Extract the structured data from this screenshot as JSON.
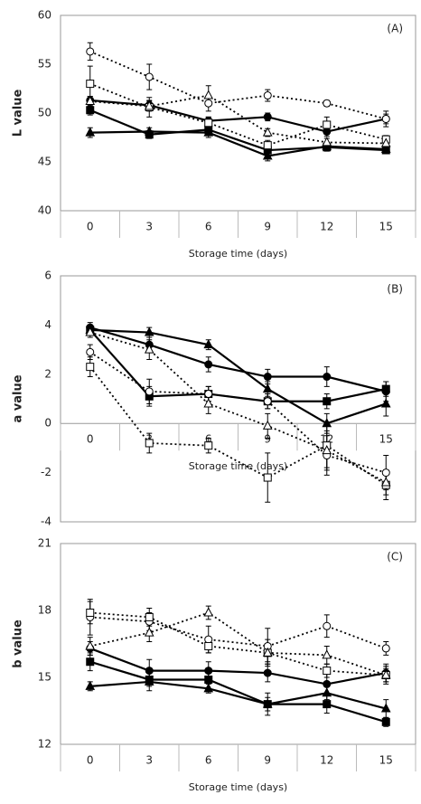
{
  "chart_data": [
    {
      "type": "line",
      "title": "(A)",
      "ylabel": "L value",
      "xlabel": "Storage time (days)",
      "categories": [
        "0",
        "3",
        "6",
        "9",
        "12",
        "15"
      ],
      "ylim": [
        40,
        60
      ],
      "yticks": [
        40,
        45,
        50,
        55,
        60
      ],
      "grid": false,
      "series": [
        {
          "color": "#000000",
          "marker": "circle",
          "filled": true,
          "dashed": false,
          "values": [
            51.3,
            50.8,
            49.2,
            49.6,
            48.1,
            49.4
          ],
          "errors": [
            0.4,
            0.5,
            0.4,
            0.4,
            0.5,
            0.5
          ]
        },
        {
          "color": "#000000",
          "marker": "square",
          "filled": true,
          "dashed": false,
          "values": [
            50.3,
            47.8,
            48.3,
            46.2,
            46.5,
            46.2
          ],
          "errors": [
            0.5,
            0.4,
            0.5,
            0.5,
            0.4,
            0.3
          ]
        },
        {
          "color": "#000000",
          "marker": "triangle",
          "filled": true,
          "dashed": false,
          "values": [
            48.0,
            48.1,
            48.0,
            45.6,
            46.6,
            46.3
          ],
          "errors": [
            0.5,
            0.4,
            0.5,
            0.5,
            0.4,
            0.3
          ]
        },
        {
          "color": "#000000",
          "marker": "circle",
          "filled": false,
          "dashed": true,
          "values": [
            56.3,
            53.7,
            51.0,
            51.8,
            51.0,
            49.4
          ],
          "errors": [
            0.9,
            1.3,
            0.8,
            0.6,
            0.3,
            0.8
          ]
        },
        {
          "color": "#000000",
          "marker": "square",
          "filled": false,
          "dashed": true,
          "values": [
            53.0,
            50.6,
            49.0,
            46.7,
            48.8,
            47.3
          ],
          "errors": [
            1.8,
            1.0,
            0.6,
            0.5,
            0.8,
            0.4
          ]
        },
        {
          "color": "#000000",
          "marker": "triangle",
          "filled": false,
          "dashed": true,
          "values": [
            51.2,
            50.7,
            51.8,
            48.0,
            47.0,
            46.9
          ],
          "errors": [
            0.5,
            0.5,
            1.0,
            0.4,
            0.4,
            0.4
          ]
        }
      ]
    },
    {
      "type": "line",
      "title": "(B)",
      "ylabel": "a value",
      "xlabel": "Storage time (days)",
      "categories": [
        "0",
        "3",
        "6",
        "9",
        "12",
        "15"
      ],
      "ylim": [
        -4,
        6
      ],
      "yticks": [
        -4,
        -2,
        0,
        2,
        4,
        6
      ],
      "grid": false,
      "series": [
        {
          "color": "#000000",
          "marker": "circle",
          "filled": true,
          "dashed": false,
          "values": [
            3.9,
            3.2,
            2.4,
            1.9,
            1.9,
            1.3
          ],
          "errors": [
            0.2,
            0.3,
            0.3,
            0.3,
            0.4,
            0.4
          ]
        },
        {
          "color": "#000000",
          "marker": "square",
          "filled": true,
          "dashed": false,
          "values": [
            3.8,
            1.1,
            1.2,
            0.9,
            0.9,
            1.4
          ],
          "errors": [
            0.2,
            0.4,
            0.3,
            0.3,
            0.3,
            0.3
          ]
        },
        {
          "color": "#000000",
          "marker": "triangle",
          "filled": true,
          "dashed": false,
          "values": [
            3.8,
            3.7,
            3.2,
            1.4,
            0.0,
            0.8
          ],
          "errors": [
            0.2,
            0.2,
            0.2,
            0.3,
            0.4,
            0.5
          ]
        },
        {
          "color": "#000000",
          "marker": "circle",
          "filled": false,
          "dashed": true,
          "values": [
            2.9,
            1.3,
            1.2,
            0.9,
            -1.3,
            -2.0
          ],
          "errors": [
            0.3,
            0.5,
            0.3,
            0.3,
            0.8,
            0.7
          ]
        },
        {
          "color": "#000000",
          "marker": "square",
          "filled": false,
          "dashed": true,
          "values": [
            2.3,
            -0.8,
            -0.9,
            -2.2,
            -0.9,
            -2.5
          ],
          "errors": [
            0.4,
            0.4,
            0.3,
            1.0,
            0.9,
            0.6
          ]
        },
        {
          "color": "#000000",
          "marker": "triangle",
          "filled": false,
          "dashed": true,
          "values": [
            3.7,
            3.0,
            0.8,
            -0.1,
            -1.1,
            -2.4
          ],
          "errors": [
            0.2,
            0.4,
            0.4,
            0.5,
            0.8,
            0.5
          ]
        }
      ]
    },
    {
      "type": "line",
      "title": "(C)",
      "ylabel": "b value",
      "xlabel": "Storage time (days)",
      "categories": [
        "0",
        "3",
        "6",
        "9",
        "12",
        "15"
      ],
      "ylim": [
        12,
        21
      ],
      "yticks": [
        12,
        15,
        18,
        21
      ],
      "grid": false,
      "series": [
        {
          "color": "#000000",
          "marker": "circle",
          "filled": true,
          "dashed": false,
          "values": [
            16.3,
            15.3,
            15.3,
            15.2,
            14.7,
            15.2
          ],
          "errors": [
            0.3,
            0.5,
            0.4,
            0.4,
            0.5,
            0.4
          ]
        },
        {
          "color": "#000000",
          "marker": "square",
          "filled": true,
          "dashed": false,
          "values": [
            15.7,
            14.9,
            14.9,
            13.8,
            13.8,
            13.0
          ],
          "errors": [
            0.4,
            0.3,
            0.4,
            0.5,
            0.4,
            0.2
          ]
        },
        {
          "color": "#000000",
          "marker": "triangle",
          "filled": true,
          "dashed": false,
          "values": [
            14.6,
            14.8,
            14.5,
            13.8,
            14.3,
            13.6
          ],
          "errors": [
            0.2,
            0.4,
            0.2,
            0.3,
            0.3,
            0.4
          ]
        },
        {
          "color": "#000000",
          "marker": "circle",
          "filled": false,
          "dashed": true,
          "values": [
            17.7,
            17.5,
            16.7,
            16.4,
            17.3,
            16.3
          ],
          "errors": [
            0.8,
            0.4,
            0.6,
            0.8,
            0.5,
            0.3
          ]
        },
        {
          "color": "#000000",
          "marker": "square",
          "filled": false,
          "dashed": true,
          "values": [
            17.9,
            17.7,
            16.4,
            16.1,
            15.3,
            15.1
          ],
          "errors": [
            0.5,
            0.4,
            0.3,
            0.4,
            0.3,
            0.3
          ]
        },
        {
          "color": "#000000",
          "marker": "triangle",
          "filled": false,
          "dashed": true,
          "values": [
            16.4,
            17.0,
            17.9,
            16.1,
            16.0,
            15.1
          ],
          "errors": [
            0.4,
            0.4,
            0.3,
            0.6,
            0.4,
            0.4
          ]
        }
      ]
    }
  ]
}
